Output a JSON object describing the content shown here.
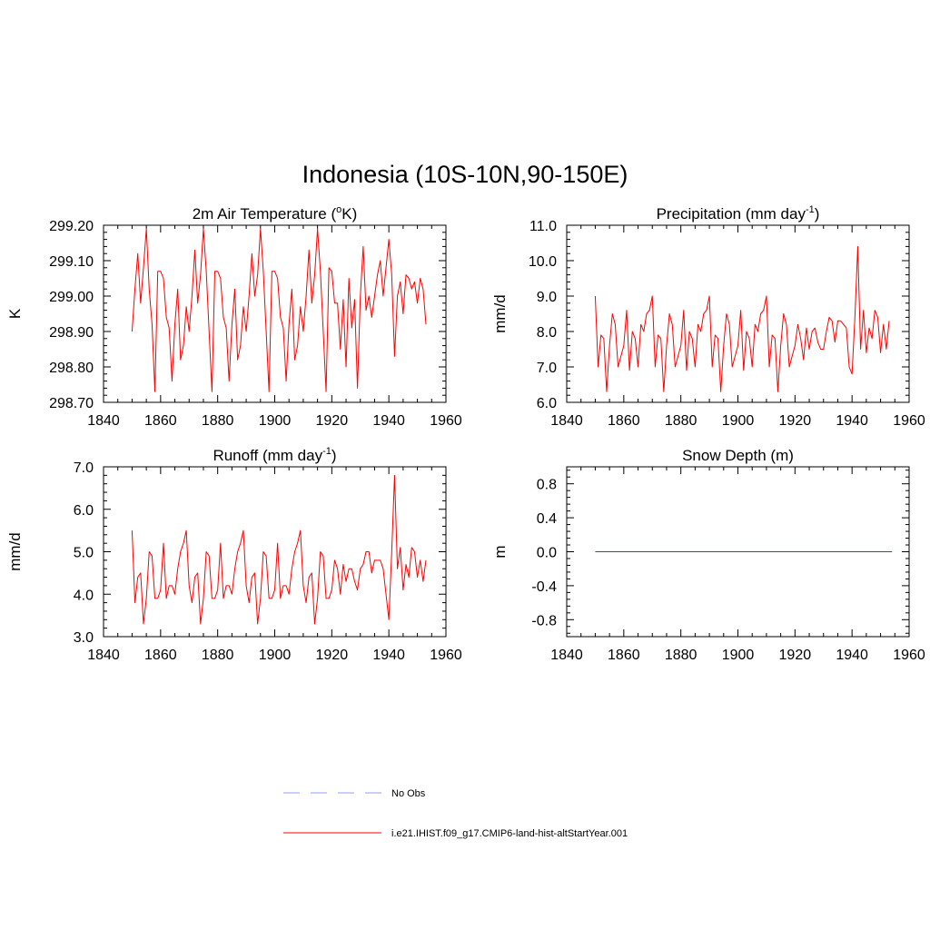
{
  "figure": {
    "title": "Indonesia (10S-10N,90-150E)"
  },
  "legend": {
    "items": [
      {
        "label": "No Obs",
        "color": "#9999ff",
        "dash": true
      },
      {
        "label": "i.e21.IHIST.f09_g17.CMIP6-land-hist-altStartYear.001",
        "color": "#ff0000",
        "dash": false
      }
    ]
  },
  "chart_data": [
    {
      "type": "line",
      "title_main": "2m Air Temperature (",
      "title_sup": "o",
      "title_end": "K)",
      "ylabel": "K",
      "xlim": [
        1840,
        1960
      ],
      "ylim": [
        298.7,
        299.2
      ],
      "xticks": [
        "1840",
        "1860",
        "1880",
        "1900",
        "1920",
        "1940",
        "1960"
      ],
      "yticks": [
        "298.70",
        "298.80",
        "298.90",
        "299.00",
        "299.10",
        "299.20"
      ],
      "line_color": "#ff0000",
      "x_start": 1850,
      "series": [
        {
          "values": [
            298.9,
            299.02,
            299.12,
            298.98,
            299.08,
            299.19,
            299.02,
            298.92,
            298.73,
            299.07,
            299.07,
            299.05,
            298.94,
            298.91,
            298.76,
            298.92,
            299.02,
            298.82,
            298.86,
            298.97,
            298.9,
            299.0,
            299.13,
            298.98,
            299.06,
            299.19,
            299.07,
            298.9,
            298.73,
            299.07,
            299.07,
            299.05,
            298.94,
            298.91,
            298.76,
            298.92,
            299.02,
            298.82,
            298.86,
            298.97,
            298.9,
            299.0,
            299.12,
            299.0,
            299.06,
            299.19,
            299.07,
            298.9,
            298.73,
            299.07,
            299.07,
            299.05,
            298.94,
            298.91,
            298.76,
            298.92,
            299.02,
            298.82,
            298.86,
            298.97,
            298.9,
            299.0,
            299.13,
            298.98,
            299.06,
            299.19,
            299.07,
            298.9,
            298.73,
            299.08,
            299.07,
            298.98,
            298.98,
            298.85,
            298.99,
            298.8,
            299.05,
            298.91,
            298.99,
            298.74,
            299.0,
            299.14,
            298.96,
            299.0,
            298.94,
            299.0,
            299.06,
            299.1,
            299.0,
            299.08,
            299.16,
            299.06,
            298.83,
            299.0,
            299.04,
            298.95,
            299.06,
            299.05,
            299.02,
            299.04,
            298.98,
            299.05,
            299.02,
            298.92
          ]
        }
      ]
    },
    {
      "type": "line",
      "title_main": "Precipitation (mm day",
      "title_sup": "-1",
      "title_end": ")",
      "ylabel": "mm/d",
      "xlim": [
        1840,
        1960
      ],
      "ylim": [
        6.0,
        11.0
      ],
      "xticks": [
        "1840",
        "1860",
        "1880",
        "1900",
        "1920",
        "1940",
        "1960"
      ],
      "yticks": [
        "6.0",
        "7.0",
        "8.0",
        "9.0",
        "10.0",
        "11.0"
      ],
      "line_color": "#ff0000",
      "x_start": 1850,
      "series": [
        {
          "values": [
            9.0,
            7.0,
            7.9,
            7.8,
            6.3,
            7.6,
            8.5,
            8.2,
            7.0,
            7.3,
            7.6,
            8.6,
            6.9,
            8.0,
            7.8,
            7.0,
            8.2,
            8.0,
            8.5,
            8.6,
            9.0,
            7.0,
            7.9,
            7.8,
            6.3,
            7.6,
            8.5,
            8.2,
            7.0,
            7.3,
            7.6,
            8.6,
            6.9,
            8.0,
            7.8,
            7.0,
            8.2,
            8.0,
            8.5,
            8.6,
            9.0,
            7.0,
            7.9,
            7.8,
            6.3,
            7.6,
            8.5,
            8.2,
            7.0,
            7.3,
            7.6,
            8.6,
            6.9,
            8.0,
            7.8,
            7.0,
            8.2,
            8.0,
            8.5,
            8.6,
            9.0,
            7.0,
            7.9,
            7.8,
            6.3,
            7.6,
            8.5,
            8.2,
            7.0,
            7.3,
            7.6,
            8.2,
            7.8,
            7.2,
            8.1,
            7.5,
            8.0,
            8.1,
            7.7,
            7.5,
            7.5,
            8.0,
            8.4,
            8.3,
            7.7,
            8.3,
            8.3,
            8.2,
            8.1,
            7.0,
            6.8,
            8.4,
            10.4,
            7.5,
            8.6,
            7.4,
            8.1,
            7.8,
            8.6,
            8.4,
            7.4,
            8.2,
            7.5,
            8.3
          ]
        }
      ]
    },
    {
      "type": "line",
      "title_main": "Runoff (mm day",
      "title_sup": "-1",
      "title_end": ")",
      "ylabel": "mm/d",
      "xlim": [
        1840,
        1960
      ],
      "ylim": [
        3.0,
        7.0
      ],
      "xticks": [
        "1840",
        "1860",
        "1880",
        "1900",
        "1920",
        "1940",
        "1960"
      ],
      "yticks": [
        "3.0",
        "4.0",
        "5.0",
        "6.0",
        "7.0"
      ],
      "line_color": "#ff0000",
      "x_start": 1850,
      "series": [
        {
          "values": [
            5.5,
            3.8,
            4.4,
            4.5,
            3.3,
            3.9,
            5.0,
            4.9,
            3.9,
            3.9,
            4.1,
            5.2,
            3.9,
            4.2,
            4.2,
            4.0,
            4.6,
            5.0,
            5.2,
            5.5,
            4.2,
            3.8,
            4.4,
            4.5,
            3.3,
            3.9,
            5.0,
            4.9,
            3.9,
            3.9,
            4.1,
            5.2,
            3.9,
            4.2,
            4.2,
            4.0,
            4.6,
            5.0,
            5.2,
            5.5,
            4.2,
            3.8,
            4.4,
            4.5,
            3.3,
            3.9,
            5.0,
            4.9,
            3.9,
            3.9,
            4.1,
            5.2,
            3.9,
            4.2,
            4.2,
            4.0,
            4.6,
            5.0,
            5.2,
            5.5,
            4.2,
            3.8,
            4.4,
            4.5,
            3.3,
            3.9,
            5.0,
            4.9,
            3.9,
            3.9,
            4.1,
            4.8,
            4.6,
            4.0,
            4.7,
            4.3,
            4.6,
            4.6,
            4.3,
            4.1,
            4.6,
            4.7,
            5.0,
            5.0,
            4.5,
            4.8,
            4.8,
            4.8,
            4.6,
            4.0,
            3.4,
            5.0,
            6.8,
            4.6,
            5.1,
            4.1,
            4.7,
            4.4,
            5.1,
            5.0,
            4.4,
            4.8,
            4.3,
            4.8
          ]
        }
      ]
    },
    {
      "type": "line",
      "title_main": "Snow Depth (m)",
      "title_sup": "",
      "title_end": "",
      "ylabel": "m",
      "xlim": [
        1840,
        1960
      ],
      "ylim": [
        -1.0,
        1.0
      ],
      "xticks": [
        "1840",
        "1860",
        "1880",
        "1900",
        "1920",
        "1940",
        "1960"
      ],
      "yticks": [
        "-0.8",
        "-0.4",
        "0.0",
        "0.4",
        "0.8"
      ],
      "line_color": "#ff0000",
      "x_start": 1850,
      "series": [
        {
          "values": [
            0,
            0,
            0,
            0,
            0,
            0,
            0,
            0,
            0,
            0,
            0,
            0,
            0,
            0,
            0,
            0,
            0,
            0,
            0,
            0,
            0,
            0,
            0,
            0,
            0,
            0,
            0,
            0,
            0,
            0,
            0,
            0,
            0,
            0,
            0,
            0,
            0,
            0,
            0,
            0,
            0,
            0,
            0,
            0,
            0,
            0,
            0,
            0,
            0,
            0,
            0,
            0,
            0,
            0,
            0,
            0,
            0,
            0,
            0,
            0,
            0,
            0,
            0,
            0,
            0,
            0,
            0,
            0,
            0,
            0,
            0,
            0,
            0,
            0,
            0,
            0,
            0,
            0,
            0,
            0,
            0,
            0,
            0,
            0,
            0,
            0,
            0,
            0,
            0,
            0,
            0,
            0,
            0,
            0,
            0,
            0,
            0,
            0,
            0,
            0,
            0,
            0,
            0,
            0,
            0
          ]
        }
      ]
    }
  ]
}
